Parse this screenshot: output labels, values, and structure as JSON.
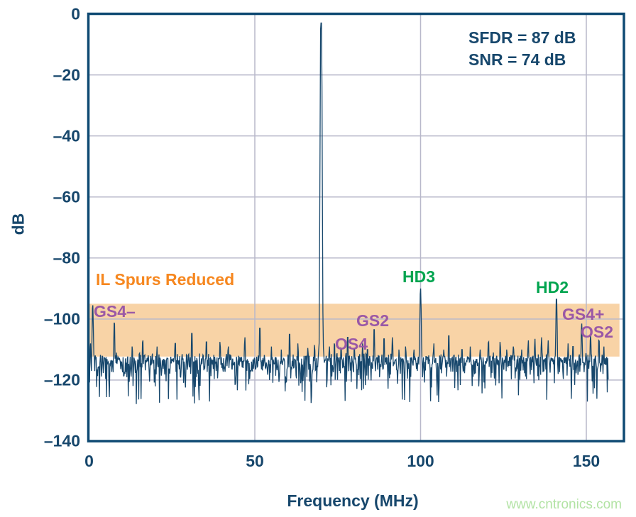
{
  "watermark": {
    "text": "www.cntronics.com",
    "color": "#b2e3a4"
  },
  "chart_data": {
    "type": "line",
    "title": "",
    "xlabel": "Frequency (MHz)",
    "ylabel": "dB",
    "xlim": [
      0,
      161.3
    ],
    "ylim": [
      -140,
      0
    ],
    "data_xmax_mhz": 156.6,
    "grid": true,
    "x_ticks": {
      "values": [
        0,
        50,
        100,
        150
      ],
      "labels": [
        "0",
        "50",
        "100",
        "150"
      ]
    },
    "y_ticks": {
      "values": [
        0,
        -20,
        -40,
        -60,
        -80,
        -100,
        -120,
        -140
      ],
      "labels": [
        "0",
        "–20",
        "–40",
        "–60",
        "–80",
        "–100",
        "–120",
        "–140"
      ]
    },
    "annotations": {
      "sfdr": "SFDR = 87 dB",
      "snr": "SNR = 74 dB"
    },
    "highlight_band": {
      "label": "IL Spurs Reduced",
      "db_top": -95,
      "db_bottom": -112.3,
      "mhz_start": 0,
      "mhz_end": 160,
      "fill_color": "#F8D3A6",
      "label_color": "#F6871F"
    },
    "carrier": {
      "freq_mhz": 70,
      "level_db": -3
    },
    "noise_floor": {
      "top_edge_db": -111.8,
      "mean_db": -117.5,
      "min_db": -130,
      "seed": 20240711,
      "points": 1100
    },
    "labeled_spurs": [
      {
        "label": "GS4–",
        "freq_mhz": 1.1,
        "level_db": -95.5,
        "color": "#9A58A6"
      },
      {
        "label": "OS4",
        "freq_mhz": 78,
        "level_db": -106,
        "color": "#9A58A6"
      },
      {
        "label": "GS2",
        "freq_mhz": 86,
        "level_db": -103.5,
        "color": "#9A58A6"
      },
      {
        "label": "HD3",
        "freq_mhz": 100,
        "level_db": -90,
        "color": "#00A44F"
      },
      {
        "label": "HD2",
        "freq_mhz": 141,
        "level_db": -93.5,
        "color": "#00A44F"
      },
      {
        "label": "GS4+",
        "freq_mhz": 148.6,
        "level_db": -101.5,
        "color": "#9A58A6"
      },
      {
        "label": "OS2",
        "freq_mhz": 151.3,
        "level_db": -105,
        "color": "#9A58A6"
      }
    ],
    "minor_spurs": [
      [
        0.4,
        -108
      ],
      [
        7.6,
        -101.2
      ],
      [
        13,
        -109
      ],
      [
        16.2,
        -107
      ],
      [
        20.5,
        -109
      ],
      [
        26,
        -108
      ],
      [
        31,
        -104.7
      ],
      [
        35.4,
        -107.5
      ],
      [
        39.5,
        -107.5
      ],
      [
        42,
        -109
      ],
      [
        47,
        -106
      ],
      [
        51.5,
        -103
      ],
      [
        55,
        -109
      ],
      [
        58,
        -110
      ],
      [
        60.5,
        -105
      ],
      [
        63,
        -108
      ],
      [
        66,
        -109.5
      ],
      [
        68,
        -108.5
      ],
      [
        72.5,
        -109
      ],
      [
        74,
        -108
      ],
      [
        76,
        -109.5
      ],
      [
        80,
        -110
      ],
      [
        82.5,
        -108
      ],
      [
        84,
        -110
      ],
      [
        89,
        -106.5
      ],
      [
        91.5,
        -106
      ],
      [
        93.5,
        -110
      ],
      [
        95.5,
        -109
      ],
      [
        98,
        -110
      ],
      [
        104,
        -108
      ],
      [
        107,
        -110
      ],
      [
        108.5,
        -105.5
      ],
      [
        112.5,
        -110
      ],
      [
        115,
        -109
      ],
      [
        118,
        -110
      ],
      [
        120.5,
        -107.5
      ],
      [
        124,
        -107.5
      ],
      [
        126,
        -110
      ],
      [
        128,
        -109
      ],
      [
        130.5,
        -110
      ],
      [
        132.5,
        -107
      ],
      [
        134.5,
        -106.5
      ],
      [
        136.5,
        -106
      ],
      [
        138.5,
        -107
      ],
      [
        144.5,
        -108
      ],
      [
        146,
        -109
      ],
      [
        153.8,
        -107
      ],
      [
        155.3,
        -109
      ]
    ],
    "colors": {
      "trace": "#17476C",
      "grid_line": "#b8b8ca",
      "axis_frame": "#0F4A73",
      "text": "#17476C"
    }
  }
}
